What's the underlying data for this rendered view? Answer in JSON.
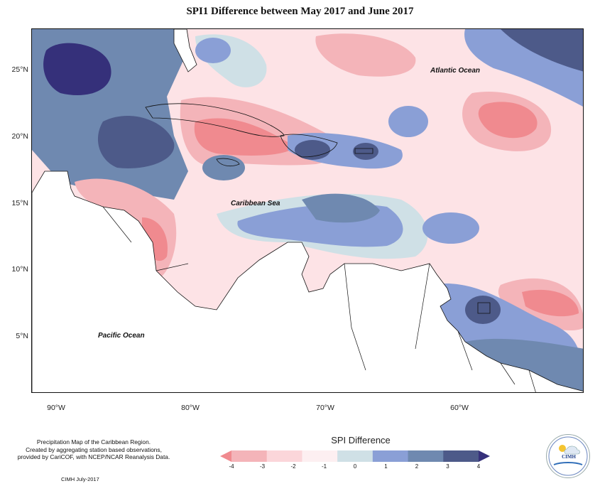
{
  "title": "SPI1 Difference between May 2017 and June 2017",
  "labels": {
    "atlantic": "Atlantic Ocean",
    "caribbean": "Caribbean Sea",
    "pacific": "Pacific Ocean"
  },
  "lat_ticks": [
    "25°N",
    "20°N",
    "15°N",
    "10°N",
    "5°N"
  ],
  "lon_ticks": [
    "90°W",
    "80°W",
    "70°W",
    "60°W"
  ],
  "legend": {
    "title": "SPI Difference",
    "ticks": [
      "-4",
      "-3",
      "-2",
      "-1",
      "0",
      "1",
      "2",
      "3",
      "4"
    ],
    "colors": [
      "#f08a8f",
      "#f4b4b9",
      "#fbd6da",
      "#fdeff1",
      "#cfe0e6",
      "#8a9fd6",
      "#6f89b0",
      "#4d5a89",
      "#35307a"
    ]
  },
  "footer": {
    "line1": "Precipitation Map of the Caribbean Region.",
    "line2": "Created by aggregating station based observations,",
    "line3": "provided by CariCOF, with NCEP/NCAR Reanalysis Data.",
    "credit": "CIMH July-2017"
  },
  "logo": {
    "text": "CIMH"
  }
}
